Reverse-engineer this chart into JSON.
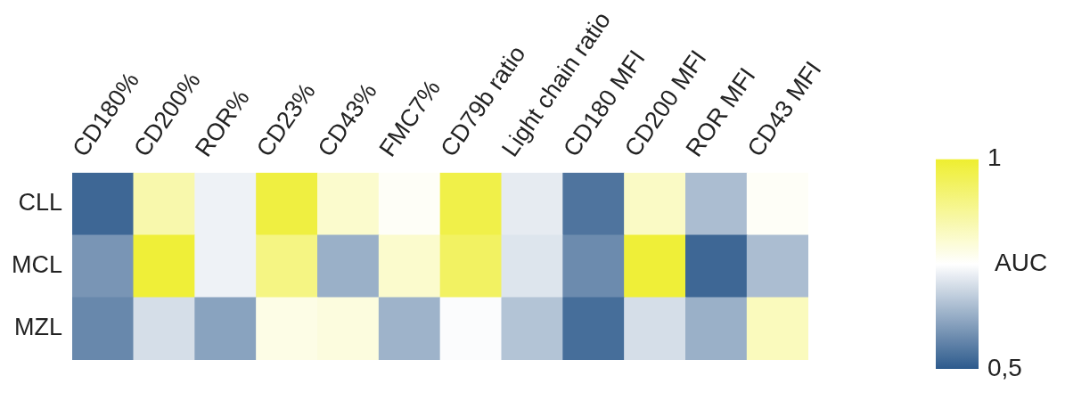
{
  "chart_data": {
    "type": "heatmap",
    "categories": [
      "CD180%",
      "CD200%",
      "ROR%",
      "CD23%",
      "CD43%",
      "FMC7%",
      "CD79b ratio",
      "Light chain ratio",
      "CD180 MFI",
      "CD200 MFI",
      "ROR MFI",
      "CD43 MFI"
    ],
    "y_categories": [
      "CLL",
      "MCL",
      "MZL"
    ],
    "cells": [
      [
        0.52,
        0.85,
        0.73,
        0.98,
        0.81,
        0.76,
        0.97,
        0.72,
        0.54,
        0.82,
        0.65,
        0.76
      ],
      [
        0.59,
        0.99,
        0.73,
        0.9,
        0.63,
        0.81,
        0.94,
        0.71,
        0.575,
        0.99,
        0.52,
        0.65
      ],
      [
        0.57,
        0.7,
        0.61,
        0.78,
        0.79,
        0.635,
        0.745,
        0.66,
        0.53,
        0.7,
        0.63,
        0.83
      ]
    ],
    "clim": [
      0.5,
      1
    ],
    "cticks": [
      {
        "value": 0.5,
        "label": "0,5"
      },
      1
    ],
    "clabel": "AUC",
    "colors": [
      "#2d5a8c",
      "#ffffff",
      "#eeee30"
    ]
  }
}
